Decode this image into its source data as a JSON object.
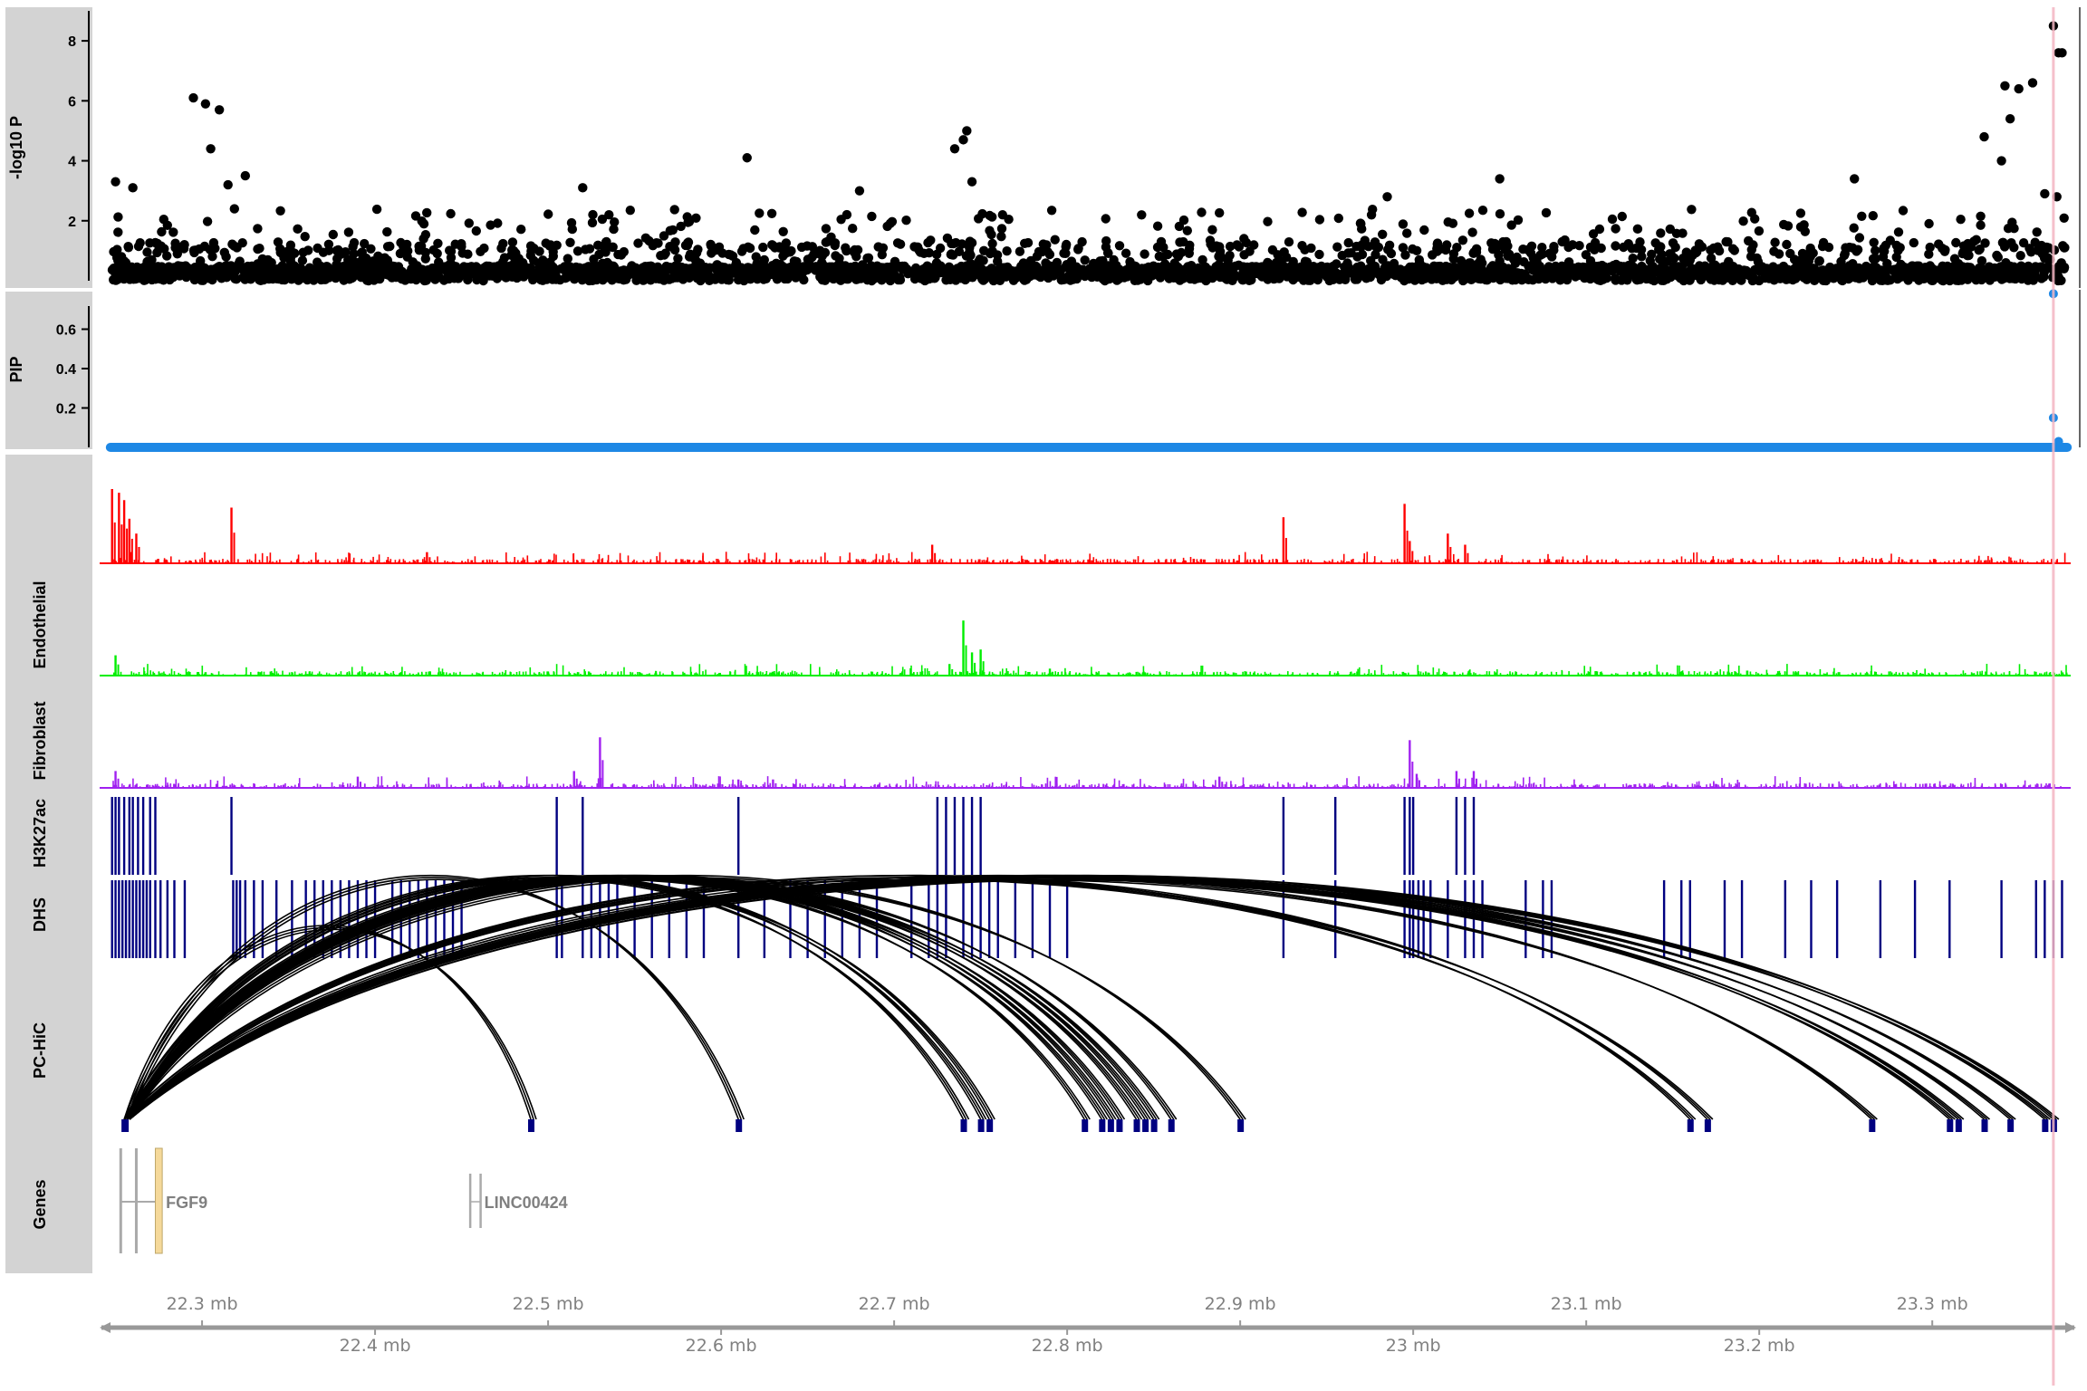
{
  "chart_data": {
    "type": "scatter",
    "x_unit": "mb",
    "xlim": [
      22.245,
      23.38
    ],
    "highlight_x": 23.37,
    "colors": {
      "highlight_line": "#f4b6c2",
      "label_panel": "#d3d3d3",
      "manhattan": "#000000",
      "pip": "#1e88e5",
      "endothelial_track": "#ff0000",
      "endothelial_label_track": "#00ee00",
      "fibroblast_track": "#a020f0",
      "regions": "#000080",
      "gene_box": "#f5d99a",
      "gene_line": "#aaaaaa",
      "axis": "#999999"
    },
    "tracks": [
      {
        "id": "manhattan",
        "label": "-log10 P",
        "yticks": [
          "2",
          "4",
          "6",
          "8"
        ],
        "ylim": [
          0,
          9
        ],
        "summary": "Dense cloud of points mostly below 1.5; peaks near 22.30 mb (6.1), 22.75 mb (5.0), and a top hit at 23.37 mb (8.5)",
        "peaks": [
          {
            "x": 22.295,
            "y": 6.1
          },
          {
            "x": 22.302,
            "y": 5.9
          },
          {
            "x": 22.31,
            "y": 5.7
          },
          {
            "x": 22.305,
            "y": 4.4
          },
          {
            "x": 22.315,
            "y": 3.2
          },
          {
            "x": 22.325,
            "y": 3.5
          },
          {
            "x": 22.25,
            "y": 3.3
          },
          {
            "x": 22.26,
            "y": 3.1
          },
          {
            "x": 22.52,
            "y": 3.1
          },
          {
            "x": 22.615,
            "y": 4.1
          },
          {
            "x": 22.68,
            "y": 3.0
          },
          {
            "x": 22.742,
            "y": 5.0
          },
          {
            "x": 22.74,
            "y": 4.7
          },
          {
            "x": 22.735,
            "y": 4.4
          },
          {
            "x": 22.745,
            "y": 3.3
          },
          {
            "x": 22.985,
            "y": 2.8
          },
          {
            "x": 23.05,
            "y": 3.4
          },
          {
            "x": 23.255,
            "y": 3.4
          },
          {
            "x": 23.33,
            "y": 4.8
          },
          {
            "x": 23.342,
            "y": 6.5
          },
          {
            "x": 23.35,
            "y": 6.4
          },
          {
            "x": 23.358,
            "y": 6.6
          },
          {
            "x": 23.34,
            "y": 4.0
          },
          {
            "x": 23.345,
            "y": 5.4
          },
          {
            "x": 23.37,
            "y": 8.5
          },
          {
            "x": 23.373,
            "y": 7.6
          },
          {
            "x": 23.375,
            "y": 7.6
          },
          {
            "x": 23.365,
            "y": 2.9
          },
          {
            "x": 23.372,
            "y": 2.8
          }
        ]
      },
      {
        "id": "pip",
        "label": "PIP",
        "yticks": [
          "0.2",
          "0.4",
          "0.6"
        ],
        "ylim": [
          0,
          0.8
        ],
        "summary": "Near zero everywhere except the highlighted variant",
        "points": [
          {
            "x": 23.37,
            "y": 0.78
          },
          {
            "x": 23.37,
            "y": 0.15
          },
          {
            "x": 23.373,
            "y": 0.03
          }
        ]
      },
      {
        "id": "endothelial",
        "label": "Endothelial",
        "peaks": [
          {
            "x": 22.248,
            "y": 1.0
          },
          {
            "x": 22.252,
            "y": 0.95
          },
          {
            "x": 22.255,
            "y": 0.85
          },
          {
            "x": 22.258,
            "y": 0.6
          },
          {
            "x": 22.262,
            "y": 0.4
          },
          {
            "x": 22.317,
            "y": 0.75
          },
          {
            "x": 22.43,
            "y": 0.15
          },
          {
            "x": 22.722,
            "y": 0.25
          },
          {
            "x": 22.925,
            "y": 0.62
          },
          {
            "x": 22.995,
            "y": 0.8
          },
          {
            "x": 22.998,
            "y": 0.3
          },
          {
            "x": 23.02,
            "y": 0.4
          },
          {
            "x": 23.03,
            "y": 0.25
          }
        ]
      },
      {
        "id": "endothelial_b",
        "label": "",
        "peaks": [
          {
            "x": 22.25,
            "y": 0.35
          },
          {
            "x": 22.732,
            "y": 0.2
          },
          {
            "x": 22.74,
            "y": 0.95
          },
          {
            "x": 22.745,
            "y": 0.4
          },
          {
            "x": 22.75,
            "y": 0.45
          },
          {
            "x": 22.79,
            "y": 0.12
          }
        ]
      },
      {
        "id": "fibroblast",
        "label": "Fibroblast",
        "peaks": [
          {
            "x": 22.25,
            "y": 0.3
          },
          {
            "x": 22.39,
            "y": 0.2
          },
          {
            "x": 22.515,
            "y": 0.3
          },
          {
            "x": 22.53,
            "y": 0.9
          },
          {
            "x": 22.61,
            "y": 0.15
          },
          {
            "x": 22.63,
            "y": 0.15
          },
          {
            "x": 22.888,
            "y": 0.2
          },
          {
            "x": 22.998,
            "y": 0.85
          },
          {
            "x": 23.002,
            "y": 0.25
          },
          {
            "x": 23.025,
            "y": 0.3
          },
          {
            "x": 23.035,
            "y": 0.3
          }
        ]
      },
      {
        "id": "h3k27ac",
        "label": "H3K27ac",
        "regions": [
          22.248,
          22.25,
          22.252,
          22.255,
          22.258,
          22.26,
          22.263,
          22.266,
          22.27,
          22.273,
          22.317,
          22.505,
          22.52,
          22.61,
          22.725,
          22.73,
          22.735,
          22.74,
          22.745,
          22.75,
          22.925,
          22.955,
          22.995,
          22.998,
          23.0,
          23.025,
          23.03,
          23.035
        ]
      },
      {
        "id": "dhs",
        "label": "DHS",
        "regions": [
          22.248,
          22.25,
          22.252,
          22.254,
          22.256,
          22.258,
          22.26,
          22.262,
          22.264,
          22.266,
          22.268,
          22.27,
          22.273,
          22.276,
          22.28,
          22.284,
          22.29,
          22.318,
          22.32,
          22.322,
          22.325,
          22.33,
          22.335,
          22.343,
          22.352,
          22.36,
          22.365,
          22.37,
          22.375,
          22.38,
          22.385,
          22.39,
          22.395,
          22.4,
          22.41,
          22.415,
          22.42,
          22.425,
          22.43,
          22.435,
          22.44,
          22.445,
          22.45,
          22.505,
          22.508,
          22.52,
          22.525,
          22.53,
          22.535,
          22.54,
          22.55,
          22.56,
          22.57,
          22.58,
          22.59,
          22.61,
          22.625,
          22.64,
          22.65,
          22.66,
          22.67,
          22.68,
          22.69,
          22.71,
          22.72,
          22.725,
          22.73,
          22.74,
          22.745,
          22.75,
          22.755,
          22.76,
          22.77,
          22.78,
          22.79,
          22.8,
          22.925,
          22.955,
          22.995,
          22.998,
          23.0,
          23.003,
          23.006,
          23.01,
          23.02,
          23.03,
          23.035,
          23.04,
          23.065,
          23.075,
          23.08,
          23.145,
          23.155,
          23.16,
          23.18,
          23.19,
          23.215,
          23.23,
          23.245,
          23.27,
          23.29,
          23.31,
          23.34,
          23.36,
          23.365,
          23.37,
          23.375
        ]
      },
      {
        "id": "pchic",
        "label": "PC-HiC",
        "anchor": 22.255,
        "targets": [
          22.49,
          22.61,
          22.74,
          22.75,
          22.755,
          22.81,
          22.82,
          22.825,
          22.83,
          22.84,
          22.845,
          22.85,
          22.86,
          22.9,
          23.16,
          23.17,
          23.265,
          23.31,
          23.315,
          23.33,
          23.345,
          23.365,
          23.37
        ]
      },
      {
        "id": "genes",
        "label": "Genes",
        "genes": [
          {
            "name": "",
            "start": 22.253,
            "end": 22.254
          },
          {
            "name": "",
            "start": 22.262,
            "end": 22.263
          },
          {
            "name": "FGF9",
            "start": 22.273,
            "end": 22.277
          },
          {
            "name": "LINC00424",
            "start": 22.455,
            "end": 22.461
          }
        ]
      }
    ],
    "xticks_upper": [
      "22.3 mb",
      "22.5 mb",
      "22.7 mb",
      "22.9 mb",
      "23.1 mb",
      "23.3 mb"
    ],
    "xticks_lower": [
      "22.4 mb",
      "22.6 mb",
      "22.8 mb",
      "23 mb",
      "23.2 mb"
    ]
  }
}
